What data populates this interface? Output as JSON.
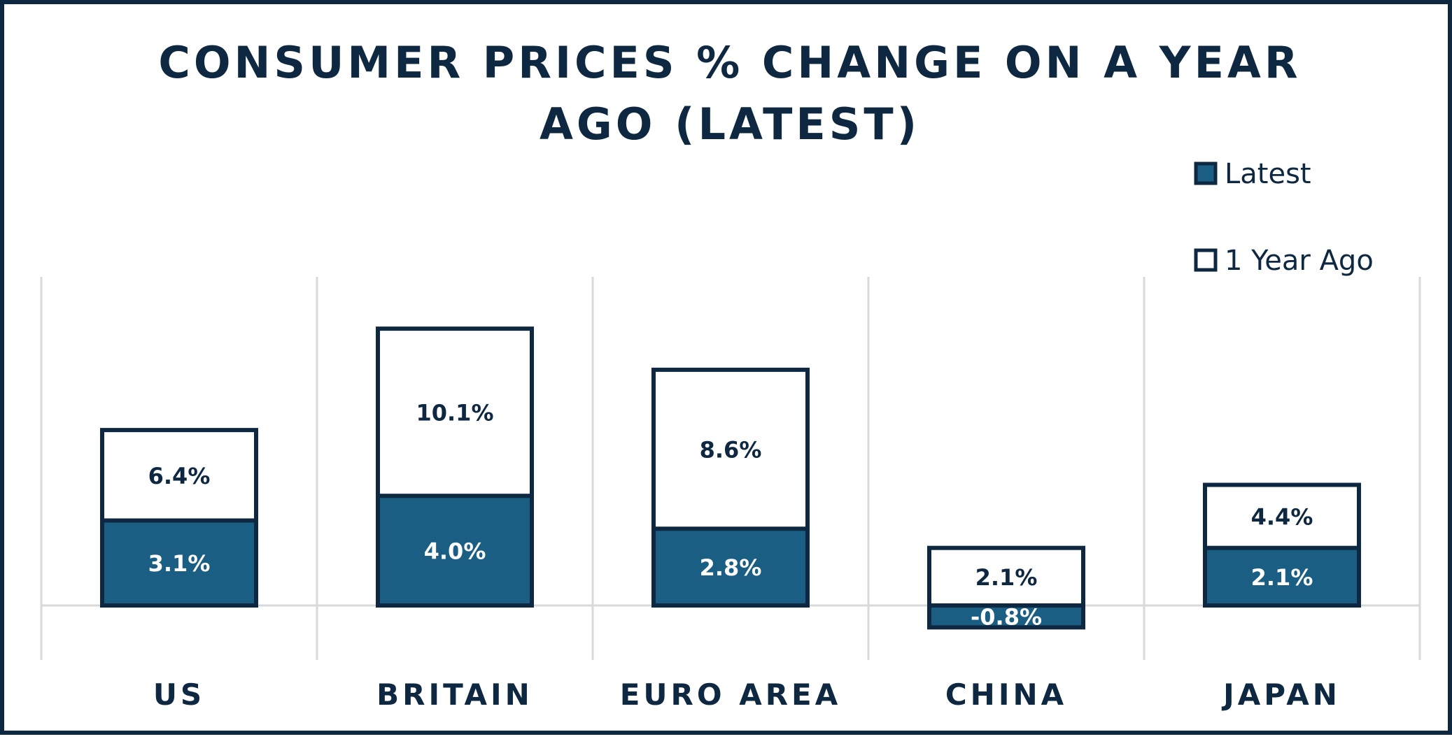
{
  "chart_data": {
    "type": "bar",
    "title_lines": [
      "CONSUMER PRICES % CHANGE ON A YEAR",
      "AGO (LATEST)"
    ],
    "categories": [
      "US",
      "BRITAIN",
      "EURO AREA",
      "CHINA",
      "JAPAN"
    ],
    "series": [
      {
        "name": "Latest",
        "values": [
          3.1,
          4.0,
          2.8,
          -0.8,
          2.1
        ],
        "labels": [
          "3.1%",
          "4.0%",
          "2.8%",
          "-0.8%",
          "2.1%"
        ],
        "color": "#1a5e83"
      },
      {
        "name": "1 Year Ago",
        "values": [
          6.4,
          10.1,
          8.6,
          2.1,
          4.4
        ],
        "labels": [
          "6.4%",
          "10.1%",
          "8.6%",
          "2.1%",
          "4.4%"
        ],
        "color": "#ffffff"
      }
    ],
    "overlapping_bars": true,
    "outline_color": "#0e2841",
    "legend_position": "top-right",
    "gridlines": "vertical category separators",
    "ylim": [
      -2.0,
      12.0
    ]
  }
}
